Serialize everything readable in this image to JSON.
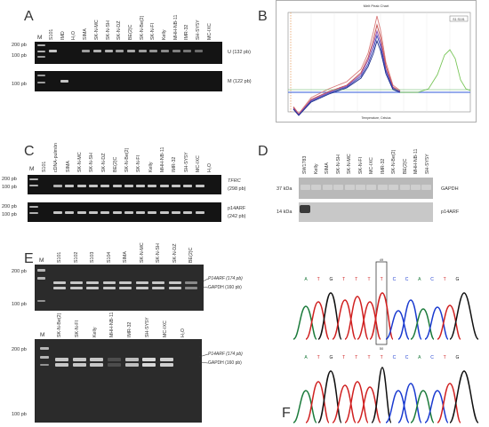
{
  "panels": {
    "A": {
      "label": "A",
      "lanes": [
        "S101",
        "IMD",
        "H₂O",
        "SIMA",
        "SK-N-MC",
        "SK-N-SH",
        "SK-N-DZ",
        "BE(2)C",
        "SK-N-Be(2)",
        "SK-N-FI",
        "Kelly",
        "MHH-NB-11",
        "IMR-32",
        "SH-SY5Y",
        "MC-IXC"
      ],
      "marker_label": "M",
      "size_200": "200 pb",
      "size_100": "100 pb",
      "u_band": "U (132 pb)",
      "m_band": "M (122 pb)"
    },
    "B": {
      "label": "B",
      "chart_title": "Melt Peak Chart",
      "legend_box": "S1 S101",
      "x_axis": "Temperature, Celsius"
    },
    "C": {
      "label": "C",
      "lanes": [
        "S101",
        "cDNA-pulmón",
        "SIMA",
        "SK-N-MC",
        "SK-N-SH",
        "SK-N-DZ",
        "BE(2)C",
        "SK-N-Be(2)",
        "SK-N-FI",
        "Kelly",
        "MHH-NB-11",
        "IMR-32",
        "SH-SY5Y",
        "MC-IXC",
        "H₂O"
      ],
      "marker_label": "M",
      "size_200": "200 pb",
      "size_100": "100 pb",
      "tfrc_name": "TFRC",
      "tfrc_size": "(298 pb)",
      "p14_name": "p14ARF",
      "p14_size": "(242 pb)"
    },
    "D": {
      "label": "D",
      "lanes": [
        "SW1783",
        "Kelly",
        "SIMA",
        "SK-N-SH",
        "SK-N-MC",
        "SK-N-FI",
        "MC-IXC",
        "IMR-32",
        "SK-N-Be(2)",
        "BE(2)C",
        "MHH-NB-11",
        "SH-SY5Y"
      ],
      "kda_37": "37 kDa",
      "kda_14": "14 kDa",
      "gapdh": "GAPDH",
      "p14": "p14ARF"
    },
    "E": {
      "label": "E",
      "lanes_top": [
        "S101",
        "S102",
        "S103",
        "S104",
        "SIMA",
        "SK-N-MC",
        "SK-N-SH",
        "SK-N-DZ",
        "BE(2)C"
      ],
      "lanes_bottom": [
        "SK-N-Be(2)",
        "SK-N-FI",
        "Kelly",
        "MHH-NB-11",
        "IMR-32",
        "SH-SY5Y",
        "MC-IXC",
        "H₂O"
      ],
      "marker_label": "M",
      "size_200": "200 pb",
      "size_100": "100 pb",
      "p14_band": "P14ARF (174 pb)",
      "gapdh_band": "GAPDH (160 pb)"
    },
    "F": {
      "label": "F",
      "top_seq": [
        "A",
        "T",
        "G",
        "T",
        "T",
        "T",
        "T",
        "C",
        "C",
        "A",
        "C",
        "T",
        "G"
      ],
      "bottom_seq": [
        "A",
        "T",
        "G",
        "T",
        "T",
        "T",
        "T",
        "C",
        "C",
        "A",
        "C",
        "T",
        "G"
      ],
      "top_marker": "49",
      "bottom_marker": "50"
    }
  }
}
